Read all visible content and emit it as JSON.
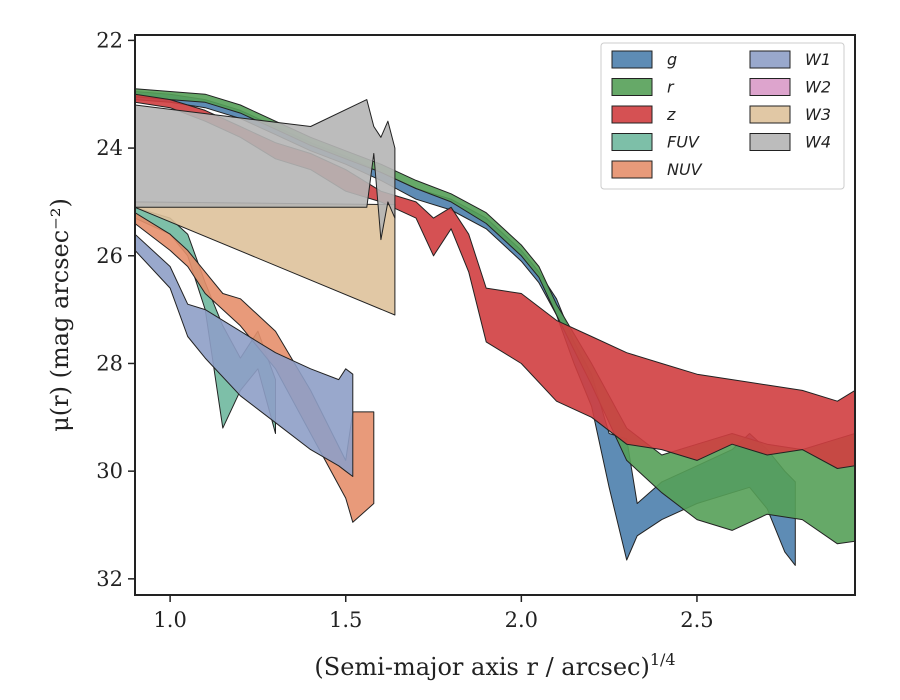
{
  "chart_data": {
    "type": "area",
    "xlabel": "(Semi-major axis r / arcsec)",
    "xlabel_sup": "1/4",
    "ylabel": "μ(r) (mag arcsec⁻²)",
    "xlim": [
      0.9,
      2.95
    ],
    "ylim": [
      32.3,
      21.9
    ],
    "y_inverted": true,
    "xticks": [
      {
        "value": 1.0,
        "label": "1.0"
      },
      {
        "value": 1.5,
        "label": "1.5"
      },
      {
        "value": 2.0,
        "label": "2.0"
      },
      {
        "value": 2.5,
        "label": "2.5"
      }
    ],
    "yticks": [
      {
        "value": 22,
        "label": "22"
      },
      {
        "value": 24,
        "label": "24"
      },
      {
        "value": 26,
        "label": "26"
      },
      {
        "value": 28,
        "label": "28"
      },
      {
        "value": 30,
        "label": "30"
      },
      {
        "value": 32,
        "label": "32"
      }
    ],
    "grid": false,
    "legend": {
      "placement": "top-right",
      "columns": 2
    },
    "series": [
      {
        "name": "g",
        "color": "#4c7fad",
        "x": [
          0.9,
          1.0,
          1.1,
          1.2,
          1.3,
          1.4,
          1.5,
          1.6,
          1.7,
          1.8,
          1.9,
          2.0,
          2.05,
          2.1,
          2.15,
          2.2,
          2.25,
          2.3,
          2.33,
          2.4,
          2.5,
          2.6,
          2.65,
          2.7,
          2.75,
          2.78
        ],
        "y_hi": [
          22.95,
          23.0,
          23.1,
          23.3,
          23.6,
          23.9,
          24.15,
          24.45,
          24.75,
          24.95,
          25.3,
          25.9,
          26.3,
          26.8,
          27.6,
          28.2,
          29.3,
          29.4,
          30.6,
          30.2,
          29.9,
          29.6,
          29.3,
          29.6,
          30.0,
          30.2
        ],
        "y_lo": [
          23.1,
          23.15,
          23.25,
          23.45,
          23.75,
          24.05,
          24.3,
          24.6,
          24.95,
          25.15,
          25.5,
          26.1,
          26.5,
          27.1,
          28.0,
          28.8,
          30.3,
          31.65,
          31.2,
          30.9,
          30.6,
          30.4,
          30.3,
          30.7,
          31.5,
          31.75
        ]
      },
      {
        "name": "r",
        "color": "#55a058",
        "x": [
          0.9,
          1.0,
          1.1,
          1.2,
          1.3,
          1.4,
          1.5,
          1.6,
          1.7,
          1.8,
          1.9,
          2.0,
          2.05,
          2.1,
          2.2,
          2.3,
          2.4,
          2.5,
          2.6,
          2.7,
          2.8,
          2.9,
          2.95
        ],
        "y_hi": [
          22.9,
          22.95,
          23.0,
          23.2,
          23.5,
          23.8,
          24.05,
          24.3,
          24.6,
          24.85,
          25.2,
          25.8,
          26.2,
          26.9,
          28.0,
          29.2,
          29.7,
          29.5,
          29.3,
          29.5,
          29.6,
          29.4,
          29.3
        ],
        "y_lo": [
          23.05,
          23.1,
          23.15,
          23.35,
          23.65,
          23.95,
          24.2,
          24.45,
          24.75,
          25.0,
          25.4,
          26.0,
          26.4,
          27.1,
          28.4,
          29.8,
          30.4,
          30.9,
          31.1,
          30.8,
          30.9,
          31.35,
          31.3
        ]
      },
      {
        "name": "z",
        "color": "#d03e40",
        "x": [
          0.9,
          1.0,
          1.1,
          1.2,
          1.3,
          1.4,
          1.5,
          1.6,
          1.7,
          1.75,
          1.8,
          1.85,
          1.9,
          2.0,
          2.1,
          2.2,
          2.3,
          2.4,
          2.5,
          2.6,
          2.7,
          2.8,
          2.9,
          2.95
        ],
        "y_hi": [
          23.0,
          23.1,
          23.3,
          23.6,
          23.9,
          24.1,
          24.4,
          24.8,
          25.0,
          25.3,
          25.1,
          25.6,
          26.6,
          26.7,
          27.2,
          27.5,
          27.8,
          28.0,
          28.2,
          28.3,
          28.4,
          28.5,
          28.7,
          28.5
        ],
        "y_lo": [
          23.15,
          23.25,
          23.5,
          23.8,
          24.2,
          24.4,
          24.8,
          25.0,
          25.3,
          26.0,
          25.5,
          26.3,
          27.6,
          28.0,
          28.7,
          29.0,
          29.5,
          29.6,
          29.8,
          29.5,
          29.7,
          29.6,
          29.95,
          29.9
        ]
      },
      {
        "name": "FUV",
        "color": "#6fb89e",
        "x": [
          0.9,
          1.0,
          1.05,
          1.1,
          1.15,
          1.2,
          1.25,
          1.3
        ],
        "y_hi": [
          25.1,
          25.3,
          25.6,
          26.5,
          27.3,
          27.9,
          27.4,
          28.3
        ],
        "y_lo": [
          25.3,
          25.6,
          26.0,
          27.0,
          29.2,
          28.5,
          28.1,
          29.3
        ]
      },
      {
        "name": "NUV",
        "color": "#e68f6b",
        "x": [
          0.9,
          1.0,
          1.05,
          1.1,
          1.15,
          1.2,
          1.3,
          1.4,
          1.5,
          1.52,
          1.58
        ],
        "y_hi": [
          25.2,
          25.6,
          25.9,
          26.3,
          26.7,
          26.8,
          27.4,
          28.5,
          29.8,
          28.9,
          28.9
        ],
        "y_lo": [
          25.4,
          25.9,
          26.2,
          26.7,
          27.0,
          27.3,
          28.1,
          29.3,
          30.5,
          30.95,
          30.6
        ]
      },
      {
        "name": "W1",
        "color": "#8e9ec7",
        "x": [
          0.9,
          1.0,
          1.05,
          1.1,
          1.2,
          1.3,
          1.4,
          1.48,
          1.5,
          1.52
        ],
        "y_hi": [
          25.6,
          26.2,
          26.9,
          27.0,
          27.4,
          27.8,
          28.1,
          28.3,
          28.1,
          28.2
        ],
        "y_lo": [
          25.9,
          26.6,
          27.5,
          27.9,
          28.6,
          29.1,
          29.6,
          29.9,
          30.0,
          30.1
        ]
      },
      {
        "name": "W2",
        "color": "#d99ac8",
        "x": [],
        "y_hi": [],
        "y_lo": []
      },
      {
        "name": "W3",
        "color": "#dec29b",
        "x": [
          0.9,
          1.64
        ],
        "y_hi": [
          25.0,
          25.05
        ],
        "y_lo": [
          25.1,
          27.1
        ]
      },
      {
        "name": "W4",
        "color": "#b5b5b5",
        "x": [
          0.9,
          1.4,
          1.56,
          1.58,
          1.6,
          1.62,
          1.64
        ],
        "y_hi": [
          23.2,
          23.6,
          23.1,
          23.6,
          23.8,
          23.5,
          24.0
        ],
        "y_lo": [
          25.1,
          25.1,
          25.1,
          24.1,
          25.7,
          25.0,
          25.3
        ]
      }
    ]
  }
}
